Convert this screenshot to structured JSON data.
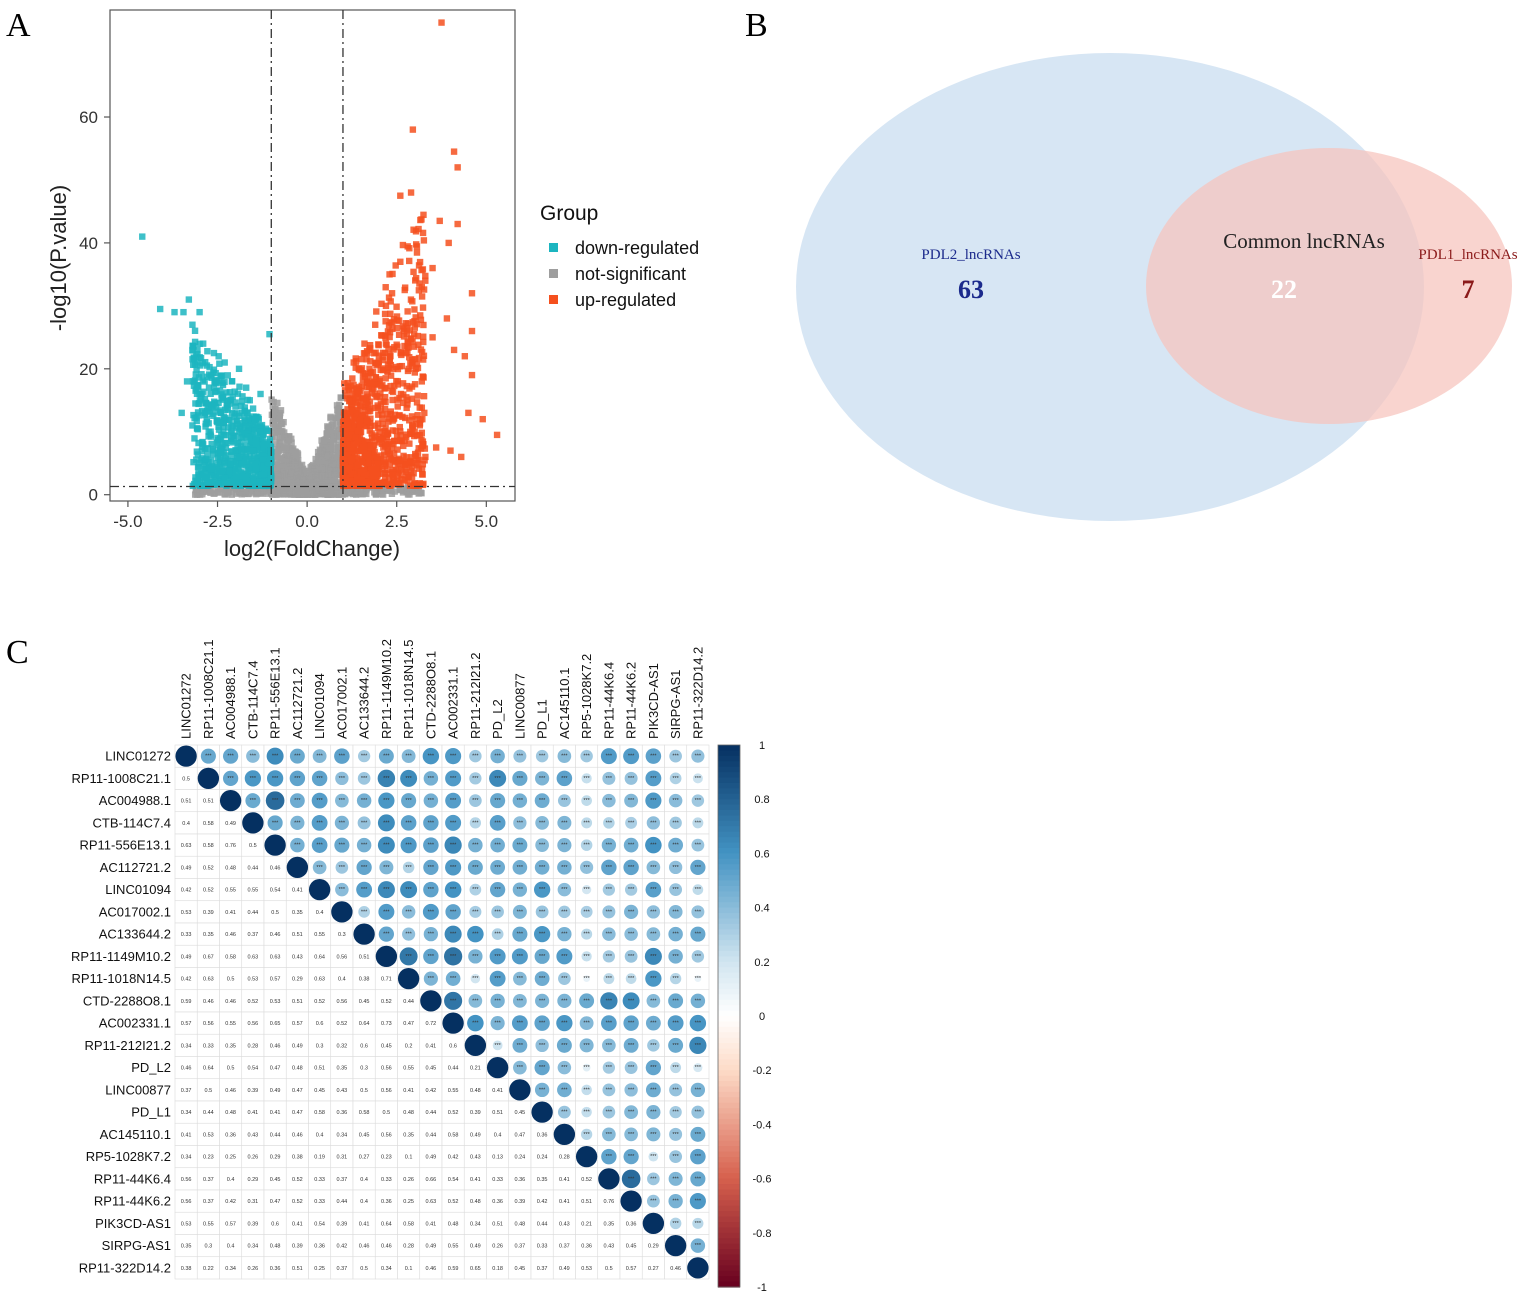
{
  "panels": {
    "a": "A",
    "b": "B",
    "c": "C"
  },
  "chart_data": [
    {
      "type": "scatter",
      "panel": "A",
      "title": "",
      "xlabel": "log2(FoldChange)",
      "ylabel": "-log10(P.value)",
      "xlim": [
        -5.5,
        5.8
      ],
      "ylim": [
        -1,
        77
      ],
      "xticks": [
        "-5.0",
        "-2.5",
        "0.0",
        "2.5",
        "5.0"
      ],
      "xtick_values": [
        -5.0,
        -2.5,
        0.0,
        2.5,
        5.0
      ],
      "yticks": [
        "0",
        "20",
        "40",
        "60"
      ],
      "ytick_values": [
        0,
        20,
        40,
        60
      ],
      "fc_thresholds": [
        -1,
        1
      ],
      "p_threshold": 1.3,
      "legend_title": "Group",
      "legend": [
        "down-regulated",
        "not-significant",
        "up-regulated"
      ],
      "colors": {
        "down-regulated": "#1cb5c0",
        "not-significant": "#9e9e9e",
        "up-regulated": "#f5501e"
      },
      "series": [
        {
          "name": "down-regulated",
          "points": [
            [
              -4.6,
              41
            ],
            [
              -4.1,
              29.5
            ],
            [
              -3.3,
              31
            ],
            [
              -3.0,
              29
            ],
            [
              -3.7,
              29
            ],
            [
              -3.45,
              29
            ],
            [
              -3.2,
              27
            ],
            [
              -1.05,
              25.5
            ],
            [
              -3.2,
              23
            ],
            [
              -2.9,
              24
            ],
            [
              -2.6,
              22.5
            ],
            [
              -2.3,
              21
            ],
            [
              -1.9,
              20
            ],
            [
              -3.35,
              18
            ],
            [
              -3.0,
              16
            ],
            [
              -2.6,
              17
            ],
            [
              -2.1,
              18
            ],
            [
              -1.7,
              17
            ],
            [
              -3.5,
              13
            ],
            [
              -3.2,
              11
            ],
            [
              -2.8,
              12
            ],
            [
              -2.4,
              13
            ],
            [
              -2.0,
              14
            ],
            [
              -1.6,
              15
            ],
            [
              -1.3,
              16
            ],
            [
              -2.9,
              8
            ],
            [
              -2.5,
              9
            ],
            [
              -2.1,
              10
            ],
            [
              -1.7,
              11
            ],
            [
              -1.35,
              12
            ],
            [
              -2.3,
              5
            ],
            [
              -1.9,
              6
            ],
            [
              -1.5,
              7
            ],
            [
              -1.2,
              8
            ]
          ]
        },
        {
          "name": "up-regulated",
          "points": [
            [
              3.75,
              75
            ],
            [
              2.95,
              58
            ],
            [
              4.1,
              54.5
            ],
            [
              4.2,
              52
            ],
            [
              2.6,
              47.5
            ],
            [
              2.9,
              48
            ],
            [
              3.7,
              43.5
            ],
            [
              4.2,
              43
            ],
            [
              3.95,
              40
            ],
            [
              2.6,
              37
            ],
            [
              2.3,
              35
            ],
            [
              3.5,
              36
            ],
            [
              4.6,
              32
            ],
            [
              3.2,
              33
            ],
            [
              3.9,
              28
            ],
            [
              4.6,
              26
            ],
            [
              3.5,
              25
            ],
            [
              4.1,
              23
            ],
            [
              4.4,
              22
            ],
            [
              4.6,
              19
            ],
            [
              3.2,
              18
            ],
            [
              4.9,
              12
            ],
            [
              4.5,
              13
            ],
            [
              5.3,
              9.5
            ],
            [
              3.6,
              7.5
            ],
            [
              4.0,
              7
            ],
            [
              4.3,
              6
            ],
            [
              2.2,
              30
            ],
            [
              1.9,
              27
            ],
            [
              1.6,
              24
            ],
            [
              1.3,
              21
            ],
            [
              2.4,
              20
            ],
            [
              2.8,
              15
            ],
            [
              3.0,
              10
            ],
            [
              3.3,
              6
            ]
          ]
        }
      ]
    },
    {
      "type": "venn",
      "panel": "B",
      "sets": [
        {
          "name": "PDL2_lncRNAs",
          "count": "63",
          "color": "#c9ddf0"
        },
        {
          "name": "PDL1_lncRNAs",
          "count": "7",
          "color": "#f7c9c4"
        }
      ],
      "intersection": {
        "name": "Common lncRNAs",
        "count": "22"
      },
      "text_colors": {
        "PDL2_lncRNAs": "#1b2a8c",
        "PDL1_lncRNAs": "#8b1a1a",
        "intersection_label": "#222222",
        "intersection_count": "#ffffff"
      }
    },
    {
      "type": "heatmap",
      "panel": "C",
      "title": "",
      "labels": [
        "LINC01272",
        "RP11-1008C21.1",
        "AC004988.1",
        "CTB-114C7.4",
        "RP11-556E13.1",
        "AC112721.2",
        "LINC01094",
        "AC017002.1",
        "AC133644.2",
        "RP11-1149M10.2",
        "RP11-1018N14.5",
        "CTD-2288O8.1",
        "AC002331.1",
        "RP11-212I21.2",
        "PD_L2",
        "LINC00877",
        "PD_L1",
        "AC145110.1",
        "RP5-1028K7.2",
        "RP11-44K6.4",
        "RP11-44K6.2",
        "PIK3CD-AS1",
        "SIRPG-AS1",
        "RP11-322D14.2"
      ],
      "column_labels": [
        "LINC01272",
        "RP11-1008C21.1",
        "AC004988.1",
        "CTB-114C7.4",
        "RP11-556E13.1",
        "AC112721.2",
        "LINC01094",
        "AC017002.1",
        "AC133644.2",
        "RP11-1149M10.2",
        "RP11-1018N14.5",
        "CTD-2288O8.1",
        "AC002331.1",
        "RP11-212I21.2",
        "PD_L2",
        "LINC00877",
        "PD_L1",
        "AC145110.1",
        "RP5-1028K7.2",
        "RP11-44K6.4",
        "RP11-44K6.2",
        "PIK3CD-AS1",
        "SIRPG-AS1",
        "RP11-322D14.2"
      ],
      "colorbar_range": [
        -1,
        1
      ],
      "colorbar_ticks": [
        "1",
        "0.8",
        "0.6",
        "0.4",
        "0.2",
        "0",
        "-0.2",
        "-0.4",
        "-0.6",
        "-0.8",
        "-1"
      ],
      "lower_values": [
        [],
        [
          "0.5"
        ],
        [
          "0.51",
          "0.51"
        ],
        [
          "0.4",
          "0.58",
          "0.49"
        ],
        [
          "0.63",
          "0.58",
          "0.76",
          "0.5"
        ],
        [
          "0.49",
          "0.52",
          "0.48",
          "0.44",
          "0.46"
        ],
        [
          "0.42",
          "0.52",
          "0.55",
          "0.55",
          "0.54",
          "0.41"
        ],
        [
          "0.53",
          "0.39",
          "0.41",
          "0.44",
          "0.5",
          "0.35",
          "0.4"
        ],
        [
          "0.33",
          "0.35",
          "0.46",
          "0.37",
          "0.46",
          "0.51",
          "0.55",
          "0.3"
        ],
        [
          "0.49",
          "0.67",
          "0.58",
          "0.63",
          "0.63",
          "0.43",
          "0.64",
          "0.56",
          "0.51"
        ],
        [
          "0.42",
          "0.63",
          "0.5",
          "0.53",
          "0.57",
          "0.29",
          "0.63",
          "0.4",
          "0.38",
          "0.71"
        ],
        [
          "0.59",
          "0.46",
          "0.46",
          "0.52",
          "0.53",
          "0.51",
          "0.52",
          "0.56",
          "0.45",
          "0.52",
          "0.44"
        ],
        [
          "0.57",
          "0.56",
          "0.55",
          "0.56",
          "0.65",
          "0.57",
          "0.6",
          "0.52",
          "0.64",
          "0.73",
          "0.47",
          "0.72"
        ],
        [
          "0.34",
          "0.33",
          "0.35",
          "0.28",
          "0.46",
          "0.49",
          "0.3",
          "0.32",
          "0.6",
          "0.45",
          "0.2",
          "0.41",
          "0.6"
        ],
        [
          "0.46",
          "0.64",
          "0.5",
          "0.54",
          "0.47",
          "0.48",
          "0.51",
          "0.35",
          "0.3",
          "0.56",
          "0.55",
          "0.45",
          "0.44",
          "0.21"
        ],
        [
          "0.37",
          "0.5",
          "0.46",
          "0.39",
          "0.49",
          "0.47",
          "0.45",
          "0.43",
          "0.5",
          "0.56",
          "0.41",
          "0.42",
          "0.55",
          "0.48",
          "0.41"
        ],
        [
          "0.34",
          "0.44",
          "0.48",
          "0.41",
          "0.41",
          "0.47",
          "0.58",
          "0.36",
          "0.58",
          "0.5",
          "0.48",
          "0.44",
          "0.52",
          "0.39",
          "0.51",
          "0.45"
        ],
        [
          "0.41",
          "0.53",
          "0.36",
          "0.43",
          "0.44",
          "0.46",
          "0.4",
          "0.34",
          "0.45",
          "0.56",
          "0.35",
          "0.44",
          "0.58",
          "0.49",
          "0.4",
          "0.47",
          "0.36"
        ],
        [
          "0.34",
          "0.23",
          "0.25",
          "0.26",
          "0.29",
          "0.38",
          "0.19",
          "0.31",
          "0.27",
          "0.23",
          "0.1",
          "0.49",
          "0.42",
          "0.43",
          "0.13",
          "0.24",
          "0.24",
          "0.28"
        ],
        [
          "0.56",
          "0.37",
          "0.4",
          "0.29",
          "0.45",
          "0.52",
          "0.33",
          "0.37",
          "0.4",
          "0.33",
          "0.26",
          "0.66",
          "0.54",
          "0.41",
          "0.33",
          "0.36",
          "0.35",
          "0.41",
          "0.52"
        ],
        [
          "0.56",
          "0.37",
          "0.42",
          "0.31",
          "0.47",
          "0.52",
          "0.33",
          "0.44",
          "0.4",
          "0.36",
          "0.25",
          "0.63",
          "0.52",
          "0.48",
          "0.36",
          "0.39",
          "0.42",
          "0.41",
          "0.51",
          "0.76"
        ],
        [
          "0.53",
          "0.55",
          "0.57",
          "0.39",
          "0.6",
          "0.41",
          "0.54",
          "0.39",
          "0.41",
          "0.64",
          "0.58",
          "0.41",
          "0.48",
          "0.34",
          "0.51",
          "0.48",
          "0.44",
          "0.43",
          "0.21",
          "0.35",
          "0.36"
        ],
        [
          "0.35",
          "0.3",
          "0.4",
          "0.34",
          "0.48",
          "0.39",
          "0.36",
          "0.42",
          "0.46",
          "0.46",
          "0.28",
          "0.49",
          "0.55",
          "0.49",
          "0.26",
          "0.37",
          "0.33",
          "0.37",
          "0.36",
          "0.43",
          "0.45",
          "0.29"
        ],
        [
          "0.38",
          "0.22",
          "0.34",
          "0.26",
          "0.36",
          "0.51",
          "0.25",
          "0.37",
          "0.5",
          "0.34",
          "0.1",
          "0.46",
          "0.59",
          "0.65",
          "0.18",
          "0.45",
          "0.37",
          "0.49",
          "0.53",
          "0.5",
          "0.57",
          "0.27",
          "0.46"
        ]
      ]
    }
  ]
}
